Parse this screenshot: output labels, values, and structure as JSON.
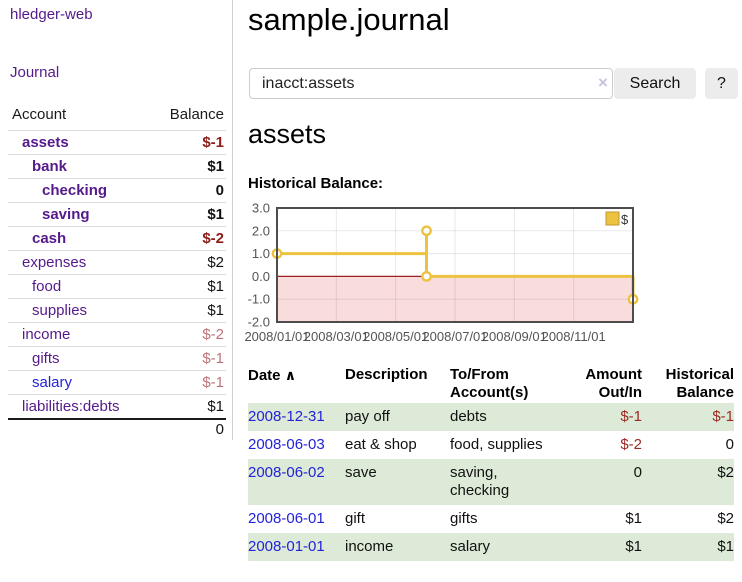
{
  "colors": {
    "link_purple": "#551a8b",
    "link_blue": "#2323d9",
    "negative_strong": "#8b1d18",
    "negative_soft": "#bd7378",
    "negative_table": "#9b2a23",
    "row_shade_green": "#dcead7",
    "button_bg": "#ececec",
    "sidebar_divider": "#cfcfcf"
  },
  "icons": {
    "clear_search": "×",
    "sort_ascending": "∧"
  },
  "sidebar": {
    "app_title": "hledger-web",
    "journal_label": "Journal",
    "accounts_header": {
      "account": "Account",
      "balance": "Balance"
    },
    "accounts": [
      {
        "name": "assets",
        "indent": 1,
        "bold": true,
        "balance": "$-1",
        "balance_style": "neg-strong"
      },
      {
        "name": "bank",
        "indent": 2,
        "bold": true,
        "balance": "$1",
        "balance_style": ""
      },
      {
        "name": "checking",
        "indent": 3,
        "bold": true,
        "balance": "0",
        "balance_style": ""
      },
      {
        "name": "saving",
        "indent": 3,
        "bold": true,
        "balance": "$1",
        "balance_style": ""
      },
      {
        "name": "cash",
        "indent": 2,
        "bold": true,
        "balance": "$-2",
        "balance_style": "neg-strong"
      },
      {
        "name": "expenses",
        "indent": 1,
        "bold": false,
        "balance": "$2",
        "balance_style": ""
      },
      {
        "name": "food",
        "indent": 2,
        "bold": false,
        "balance": "$1",
        "balance_style": ""
      },
      {
        "name": "supplies",
        "indent": 2,
        "bold": false,
        "balance": "$1",
        "balance_style": ""
      },
      {
        "name": "income",
        "indent": 1,
        "bold": false,
        "balance": "$-2",
        "balance_style": "neg-soft"
      },
      {
        "name": "gifts",
        "indent": 2,
        "bold": false,
        "balance": "$-1",
        "balance_style": "neg-soft"
      },
      {
        "name": "salary",
        "indent": 2,
        "bold": false,
        "balance": "$-1",
        "balance_style": "neg-soft",
        "link_style": "blue"
      },
      {
        "name": "liabilities:debts",
        "indent": 1,
        "bold": false,
        "balance": "$1",
        "balance_style": ""
      }
    ],
    "total": "0"
  },
  "main": {
    "title": "sample.journal",
    "search": {
      "value": "inacct:assets",
      "button_label": "Search",
      "help_label": "?"
    },
    "account_heading": "assets",
    "chart_title": "Historical Balance:"
  },
  "chart_data": {
    "type": "line",
    "title": "Historical Balance",
    "legend": {
      "label": "$",
      "position": "top-right"
    },
    "ylim": [
      -2,
      3
    ],
    "grid": true,
    "y_ticks": [
      {
        "label": "3.0",
        "v": 3
      },
      {
        "label": "2.0",
        "v": 2
      },
      {
        "label": "1.0",
        "v": 1
      },
      {
        "label": "0.0",
        "v": 0
      },
      {
        "label": "-1.0",
        "v": -1
      },
      {
        "label": "-2.0",
        "v": -2
      }
    ],
    "x_ticks": [
      {
        "label": "2008/01/01",
        "x": 0
      },
      {
        "label": "2008/03/01",
        "x": 0.1667
      },
      {
        "label": "2008/05/01",
        "x": 0.3333
      },
      {
        "label": "2008/07/01",
        "x": 0.5
      },
      {
        "label": "2008/09/01",
        "x": 0.6667
      },
      {
        "label": "2008/11/01",
        "x": 0.8333
      }
    ],
    "series": [
      {
        "name": "$",
        "color": "#edc240",
        "step_line_points": [
          [
            0,
            1
          ],
          [
            0.42,
            1
          ],
          [
            0.42,
            2
          ],
          [
            0.42,
            0
          ],
          [
            1,
            0
          ],
          [
            1,
            -1
          ]
        ],
        "markers": [
          {
            "date": "2008/01/01",
            "x": 0,
            "y": 1
          },
          {
            "date": "2008/06/01",
            "x": 0.42,
            "y": 2
          },
          {
            "date": "2008/06/03",
            "x": 0.42,
            "y": 0
          },
          {
            "date": "2008/12/31",
            "x": 1,
            "y": -1
          }
        ]
      }
    ],
    "style": {
      "negative_region": "#f9dcdc",
      "zero_line": "#9e1f1f",
      "border": "#4d4d4d",
      "grid_line": "rgba(0,0,0,0.09)",
      "tick_text": "#545454",
      "marker_fill": "#ffffff"
    }
  },
  "register": {
    "sort_icon": "∧",
    "header": [
      {
        "label": "Date"
      },
      {
        "label": "Description"
      },
      {
        "label": "To/From\nAccount(s)"
      },
      {
        "label": "Amount\nOut/In"
      },
      {
        "label": "Historical\nBalance"
      }
    ],
    "rows": [
      {
        "date": "2008-12-31",
        "description": "pay off",
        "accounts": "debts",
        "amount": "$-1",
        "amount_neg": true,
        "balance": "$-1",
        "balance_neg": true,
        "shaded": true
      },
      {
        "date": "2008-06-03",
        "description": "eat & shop",
        "accounts": "food, supplies",
        "amount": "$-2",
        "amount_neg": true,
        "balance": "0",
        "balance_neg": false,
        "shaded": false
      },
      {
        "date": "2008-06-02",
        "description": "save",
        "accounts": "saving,\nchecking",
        "amount": "0",
        "amount_neg": false,
        "balance": "$2",
        "balance_neg": false,
        "shaded": true
      },
      {
        "date": "2008-06-01",
        "description": "gift",
        "accounts": "gifts",
        "amount": "$1",
        "amount_neg": false,
        "balance": "$2",
        "balance_neg": false,
        "shaded": false
      },
      {
        "date": "2008-01-01",
        "description": "income",
        "accounts": "salary",
        "amount": "$1",
        "amount_neg": false,
        "balance": "$1",
        "balance_neg": false,
        "shaded": true
      }
    ]
  }
}
